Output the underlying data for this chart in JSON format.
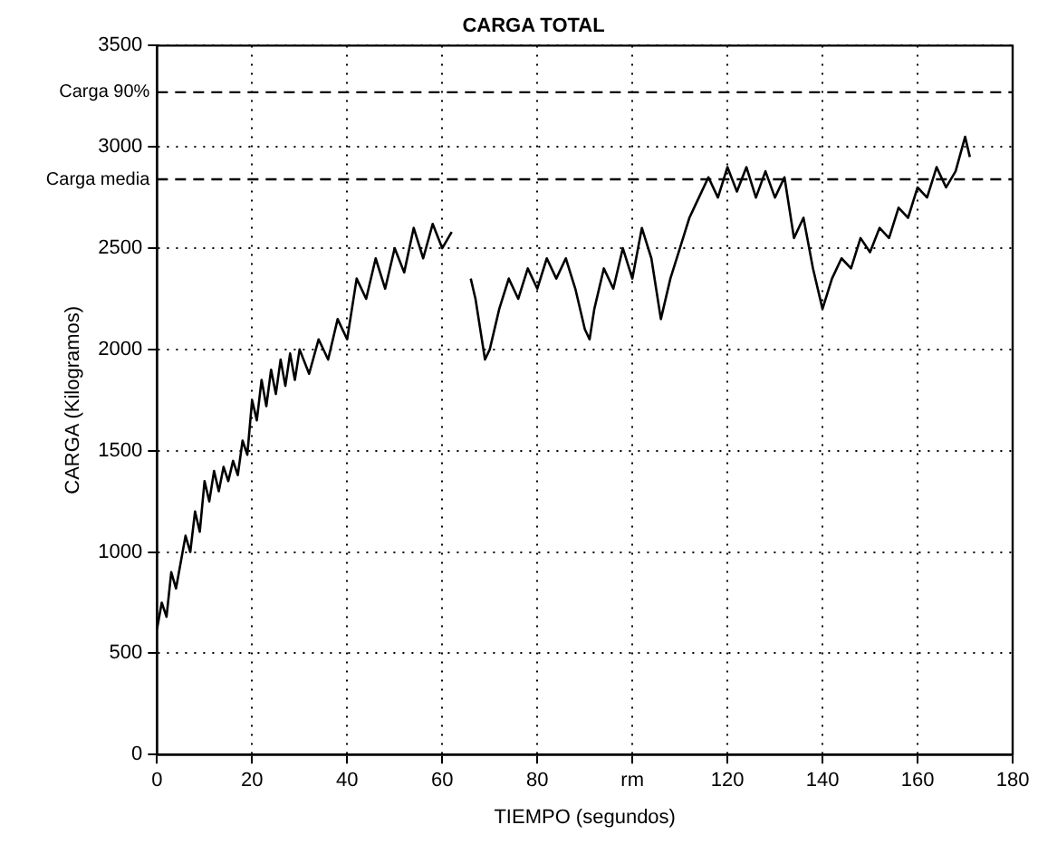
{
  "chart_data": {
    "type": "line",
    "title": "CARGA TOTAL",
    "xlabel": "TIEMPO (segundos)",
    "ylabel": "CARGA (Kilogramos)",
    "x": [
      0,
      1,
      2,
      3,
      4,
      5,
      6,
      7,
      8,
      9,
      10,
      11,
      12,
      13,
      14,
      15,
      16,
      17,
      18,
      19,
      20,
      21,
      22,
      23,
      24,
      25,
      26,
      27,
      28,
      29,
      30,
      32,
      34,
      36,
      38,
      40,
      42,
      44,
      46,
      48,
      50,
      52,
      54,
      56,
      58,
      60,
      62,
      64,
      66,
      67,
      68,
      69,
      70,
      72,
      74,
      76,
      78,
      80,
      82,
      84,
      86,
      88,
      90,
      91,
      92,
      94,
      96,
      98,
      100,
      102,
      104,
      105,
      106,
      108,
      110,
      112,
      114,
      116,
      118,
      120,
      122,
      124,
      126,
      128,
      130,
      132,
      134,
      136,
      138,
      140,
      142,
      144,
      146,
      148,
      150,
      152,
      154,
      156,
      158,
      160,
      162,
      164,
      166,
      168,
      170,
      171
    ],
    "series": [
      {
        "color": "#000000",
        "values": [
          620,
          750,
          680,
          900,
          820,
          950,
          1080,
          1000,
          1200,
          1100,
          1350,
          1250,
          1400,
          1300,
          1420,
          1350,
          1450,
          1380,
          1550,
          1480,
          1750,
          1650,
          1850,
          1720,
          1900,
          1780,
          1950,
          1820,
          1980,
          1850,
          2000,
          1880,
          2050,
          1950,
          2150,
          2050,
          2350,
          2250,
          2450,
          2300,
          2500,
          2380,
          2600,
          2450,
          2620,
          2500,
          2580,
          null,
          2350,
          2250,
          2100,
          1950,
          2000,
          2200,
          2350,
          2250,
          2400,
          2300,
          2450,
          2350,
          2450,
          2300,
          2100,
          2050,
          2200,
          2400,
          2300,
          2500,
          2350,
          2600,
          2450,
          2300,
          2150,
          2350,
          2500,
          2650,
          2750,
          2850,
          2750,
          2900,
          2780,
          2900,
          2750,
          2880,
          2750,
          2850,
          2550,
          2650,
          2400,
          2200,
          2350,
          2450,
          2400,
          2550,
          2480,
          2600,
          2550,
          2700,
          2650,
          2800,
          2750,
          2900,
          2800,
          2880,
          3050,
          2950
        ]
      }
    ],
    "xlim": [
      0,
      180
    ],
    "xticks": [
      0,
      20,
      40,
      60,
      80,
      {
        "value": 100,
        "label": "rm"
      },
      120,
      140,
      160,
      180
    ],
    "ylim": [
      0,
      3500
    ],
    "yticks": [
      0,
      500,
      1000,
      1500,
      2000,
      2500,
      3000,
      3500
    ],
    "ref_lines": [
      {
        "axis": "y",
        "value": 3270,
        "label": "Carga 90%",
        "line_style": "dashed",
        "color": "#000000"
      },
      {
        "axis": "y",
        "value": 2840,
        "label": "Carga media",
        "line_style": "dashed",
        "color": "#000000"
      }
    ],
    "grid": true,
    "legend": false,
    "marker": "none",
    "line_style": "solid"
  }
}
